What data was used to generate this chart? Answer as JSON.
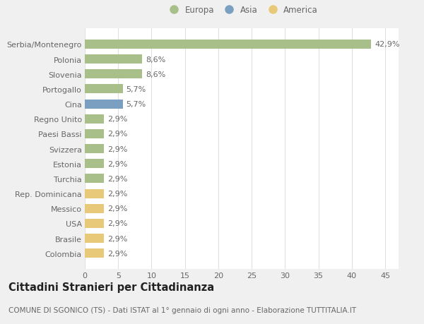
{
  "categories": [
    "Colombia",
    "Brasile",
    "USA",
    "Messico",
    "Rep. Dominicana",
    "Turchia",
    "Estonia",
    "Svizzera",
    "Paesi Bassi",
    "Regno Unito",
    "Cina",
    "Portogallo",
    "Slovenia",
    "Polonia",
    "Serbia/Montenegro"
  ],
  "values": [
    2.9,
    2.9,
    2.9,
    2.9,
    2.9,
    2.9,
    2.9,
    2.9,
    2.9,
    2.9,
    5.7,
    5.7,
    8.6,
    8.6,
    42.9
  ],
  "colors": [
    "#e8c97a",
    "#e8c97a",
    "#e8c97a",
    "#e8c97a",
    "#e8c97a",
    "#a8bf8a",
    "#a8bf8a",
    "#a8bf8a",
    "#a8bf8a",
    "#a8bf8a",
    "#7a9fc0",
    "#a8bf8a",
    "#a8bf8a",
    "#a8bf8a",
    "#a8bf8a"
  ],
  "labels": [
    "2,9%",
    "2,9%",
    "2,9%",
    "2,9%",
    "2,9%",
    "2,9%",
    "2,9%",
    "2,9%",
    "2,9%",
    "2,9%",
    "5,7%",
    "5,7%",
    "8,6%",
    "8,6%",
    "42,9%"
  ],
  "legend_labels": [
    "Europa",
    "Asia",
    "America"
  ],
  "legend_colors": [
    "#a8bf8a",
    "#7a9fc0",
    "#e8c97a"
  ],
  "title": "Cittadini Stranieri per Cittadinanza",
  "subtitle": "COMUNE DI SGONICO (TS) - Dati ISTAT al 1° gennaio di ogni anno - Elaborazione TUTTITALIA.IT",
  "xlim": [
    0,
    47
  ],
  "xticks": [
    0,
    5,
    10,
    15,
    20,
    25,
    30,
    35,
    40,
    45
  ],
  "background_color": "#f0f0f0",
  "plot_bg_color": "#ffffff",
  "grid_color": "#e0e0e0",
  "text_color": "#666666",
  "title_color": "#222222",
  "label_fontsize": 8.0,
  "tick_fontsize": 8.0,
  "title_fontsize": 10.5,
  "subtitle_fontsize": 7.5,
  "bar_height": 0.62
}
